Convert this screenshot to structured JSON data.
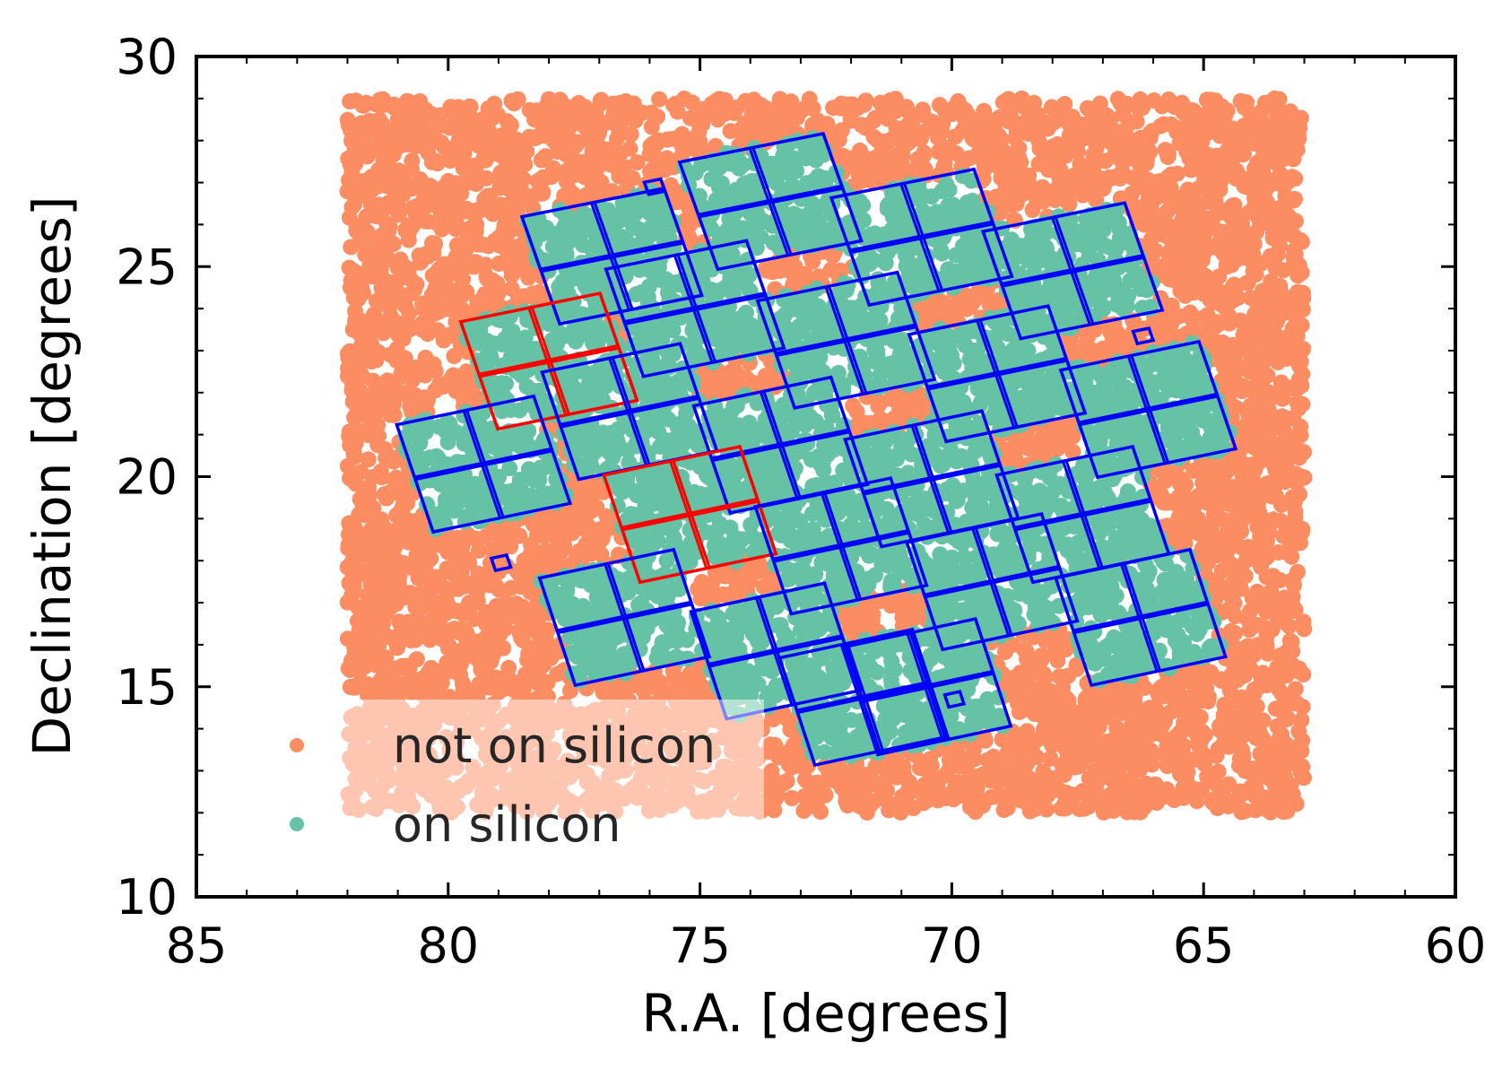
{
  "chart_data": {
    "type": "scatter",
    "title": "",
    "xlabel": "R.A. [degrees]",
    "ylabel": "Declination [degrees]",
    "xlim": [
      85,
      60
    ],
    "ylim": [
      10,
      30
    ],
    "x_ticks": [
      "85",
      "80",
      "75",
      "70",
      "65",
      "60"
    ],
    "y_ticks": [
      "10",
      "15",
      "20",
      "25",
      "30"
    ],
    "x_inverted": true,
    "grid": false,
    "legend_placement": "lower left",
    "series": [
      {
        "name": "not on silicon",
        "color": "#fc8d62",
        "marker": "circle",
        "region_ra": [
          63.0,
          82.0
        ],
        "region_dec": [
          12.0,
          29.0
        ]
      },
      {
        "name": "on silicon",
        "color": "#66c2a5",
        "marker": "circle"
      }
    ],
    "ccd_modules": {
      "outline_colors": {
        "active": "#0000ff",
        "failed": "#ff0000"
      },
      "modules": [
        {
          "ra": 76.75,
          "dec": 25.25,
          "status": "active"
        },
        {
          "ra": 73.6,
          "dec": 26.55,
          "status": "active"
        },
        {
          "ra": 70.6,
          "dec": 25.7,
          "status": "active"
        },
        {
          "ra": 67.6,
          "dec": 24.9,
          "status": "active"
        },
        {
          "ra": 78.0,
          "dec": 22.75,
          "status": "failed"
        },
        {
          "ra": 75.1,
          "dec": 24.0,
          "status": "active"
        },
        {
          "ra": 72.1,
          "dec": 23.25,
          "status": "active"
        },
        {
          "ra": 69.1,
          "dec": 22.45,
          "status": "active"
        },
        {
          "ra": 66.1,
          "dec": 21.6,
          "status": "active"
        },
        {
          "ra": 79.3,
          "dec": 20.3,
          "status": "active"
        },
        {
          "ra": 76.4,
          "dec": 21.55,
          "status": "active"
        },
        {
          "ra": 73.4,
          "dec": 20.75,
          "status": "active"
        },
        {
          "ra": 70.4,
          "dec": 19.95,
          "status": "active"
        },
        {
          "ra": 67.4,
          "dec": 19.1,
          "status": "active"
        },
        {
          "ra": 75.2,
          "dec": 19.1,
          "status": "failed"
        },
        {
          "ra": 72.2,
          "dec": 18.35,
          "status": "active"
        },
        {
          "ra": 69.2,
          "dec": 17.5,
          "status": "active"
        },
        {
          "ra": 66.25,
          "dec": 16.65,
          "status": "active"
        },
        {
          "ra": 76.5,
          "dec": 16.65,
          "status": "active"
        },
        {
          "ra": 73.5,
          "dec": 15.85,
          "status": "active"
        },
        {
          "ra": 70.5,
          "dec": 15.0,
          "status": "active"
        },
        {
          "ra": 71.75,
          "dec": 14.75,
          "status": "active"
        }
      ],
      "fine_guidance_sensors": [
        {
          "ra": 75.9,
          "dec": 26.9
        },
        {
          "ra": 66.2,
          "dec": 23.35
        },
        {
          "ra": 78.95,
          "dec": 17.95
        },
        {
          "ra": 69.95,
          "dec": 14.7
        }
      ]
    }
  }
}
